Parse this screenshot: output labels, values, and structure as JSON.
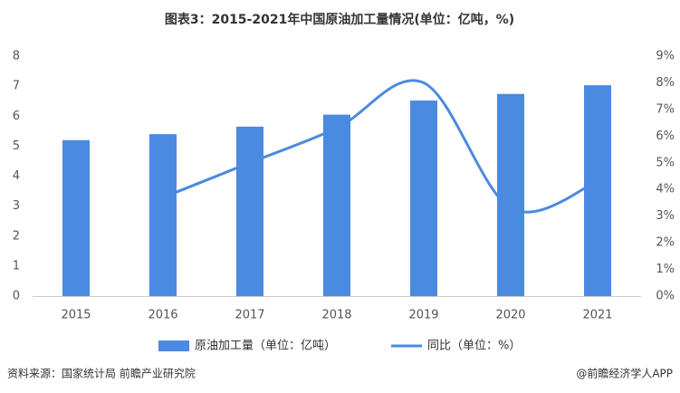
{
  "chart_data": {
    "type": "bar",
    "title": "图表3：2015-2021年中国原油加工量情况(单位：亿吨，%)",
    "categories": [
      "2015",
      "2016",
      "2017",
      "2018",
      "2019",
      "2020",
      "2021"
    ],
    "series": [
      {
        "name": "原油加工量（单位：亿吨）",
        "type": "bar",
        "color": "#4a8ae0",
        "values": [
          5.2,
          5.4,
          5.65,
          6.05,
          6.52,
          6.74,
          7.03
        ]
      },
      {
        "name": "同比（单位：%）",
        "type": "line",
        "axis": "y2",
        "color": "#4a8ae0",
        "values": [
          null,
          3.7,
          5.0,
          6.3,
          8.0,
          3.3,
          4.3
        ]
      }
    ],
    "ylim": [
      0,
      8
    ],
    "yticks": [
      0,
      1,
      2,
      3,
      4,
      5,
      6,
      7,
      8
    ],
    "y2lim": [
      0,
      9
    ],
    "y2ticks": [
      {
        "value": 0,
        "label": "0%"
      },
      {
        "value": 1,
        "label": "1%"
      },
      {
        "value": 2,
        "label": "2%"
      },
      {
        "value": 3,
        "label": "3%"
      },
      {
        "value": 4,
        "label": "4%"
      },
      {
        "value": 5,
        "label": "5%"
      },
      {
        "value": 6,
        "label": "6%"
      },
      {
        "value": 7,
        "label": "7%"
      },
      {
        "value": 8,
        "label": "8%"
      },
      {
        "value": 9,
        "label": "9%"
      }
    ],
    "source": "资料来源：国家统计局 前瞻产业研究院",
    "credit": "@前瞻经济学人APP"
  }
}
